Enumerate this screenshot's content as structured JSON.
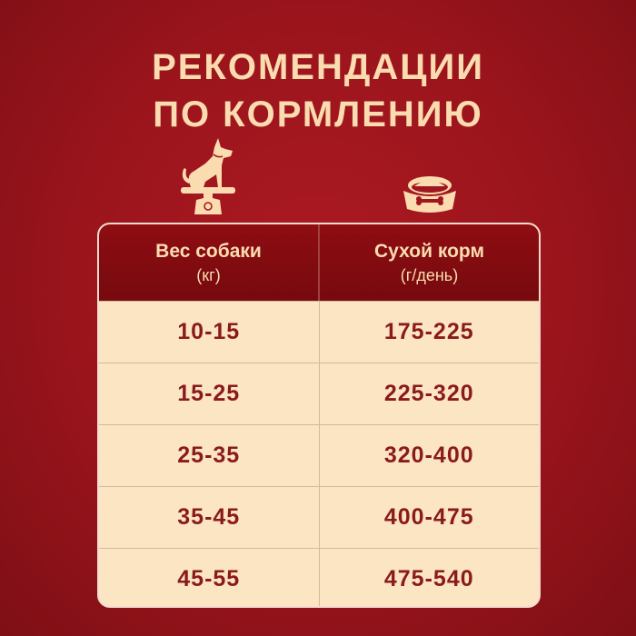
{
  "title": {
    "line1": "РЕКОМЕНДАЦИИ",
    "line2": "ПО КОРМЛЕНИЮ"
  },
  "icons": {
    "left": "dog-on-scale-icon",
    "right": "dog-food-bowl-icon"
  },
  "colors": {
    "background": "#9a141c",
    "accent": "#fbdcb0",
    "header": "#8e0d12",
    "table_bg": "#fbe5c2",
    "text": "#8a1a1c"
  },
  "table": {
    "headers": [
      {
        "label": "Вес собаки",
        "unit": "(кг)"
      },
      {
        "label": "Сухой корм",
        "unit": "(г/день)"
      }
    ],
    "rows": [
      [
        "10-15",
        "175-225"
      ],
      [
        "15-25",
        "225-320"
      ],
      [
        "25-35",
        "320-400"
      ],
      [
        "35-45",
        "400-475"
      ],
      [
        "45-55",
        "475-540"
      ]
    ]
  }
}
